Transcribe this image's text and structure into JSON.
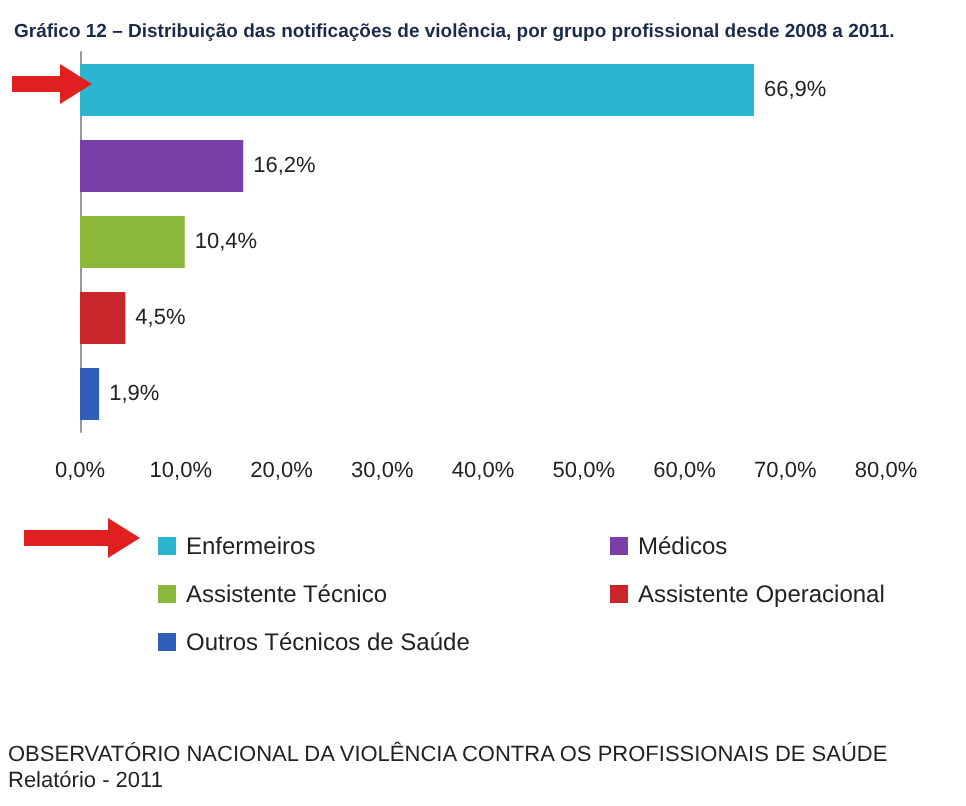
{
  "chart_data": {
    "type": "bar",
    "orientation": "horizontal",
    "stacked": true,
    "title": "Gráfico 12 – Distribuição das notificações de violência, por grupo profissional desde 2008 a 2011.",
    "categories": [
      null,
      null,
      null,
      null,
      null
    ],
    "series": [
      {
        "name": "Enfermeiros",
        "color": "#2bb5cf",
        "values": [
          66.9,
          null,
          null,
          null,
          null
        ],
        "value_labels": [
          "66,9%",
          null,
          null,
          null,
          null
        ]
      },
      {
        "name": "Médicos",
        "color": "#7a3fa6",
        "values": [
          null,
          16.2,
          null,
          null,
          null
        ],
        "value_labels": [
          null,
          "16,2%",
          null,
          null,
          null
        ]
      },
      {
        "name": "Assistente Técnico",
        "color": "#8cb83a",
        "values": [
          null,
          null,
          10.4,
          null,
          null
        ],
        "value_labels": [
          null,
          null,
          "10,4%",
          null,
          null
        ]
      },
      {
        "name": "Assistente Operacional",
        "color": "#c8262a",
        "values": [
          null,
          null,
          null,
          4.5,
          null
        ],
        "value_labels": [
          null,
          null,
          null,
          "4,5%",
          null
        ]
      },
      {
        "name": "Outros Técnicos de Saúde",
        "color": "#2f5fb8",
        "values": [
          null,
          null,
          null,
          null,
          1.9
        ],
        "value_labels": [
          null,
          null,
          null,
          null,
          "1,9%"
        ]
      }
    ],
    "xlim": [
      0,
      80
    ],
    "xticks": [
      {
        "value": 0,
        "label": "0,0%"
      },
      {
        "value": 10,
        "label": "10,0%"
      },
      {
        "value": 20,
        "label": "20,0%"
      },
      {
        "value": 30,
        "label": "30,0%"
      },
      {
        "value": 40,
        "label": "40,0%"
      },
      {
        "value": 50,
        "label": "50,0%"
      },
      {
        "value": 60,
        "label": "60,0%"
      },
      {
        "value": 70,
        "label": "70,0%"
      },
      {
        "value": 80,
        "label": "80,0%"
      }
    ],
    "grid": false,
    "legend": "bottom",
    "annotations": [
      "OBSERVATÓRIO NACIONAL DA VIOLÊNCIA CONTRA OS PROFISSIONAIS DE SAÚDE",
      "Relatório - 2011"
    ]
  }
}
